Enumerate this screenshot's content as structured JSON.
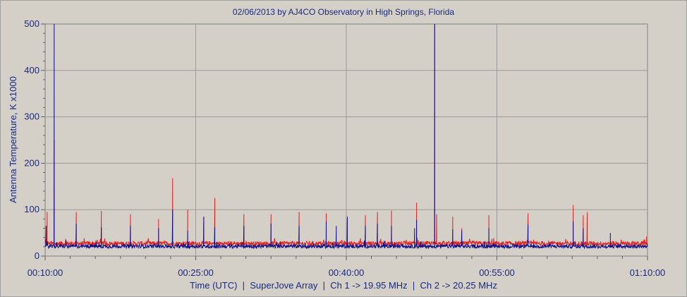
{
  "chart_data": {
    "type": "line",
    "title": "02/06/2013  by  AJ4CO Observatory  in  High Springs, Florida",
    "xlabel": "Time (UTC)  |  SuperJove Array  |  Ch 1 -> 19.95 MHz  |  Ch 2 -> 20.25 MHz",
    "ylabel": "Antenna Temperature, K x1000",
    "ylim": [
      0,
      500
    ],
    "yticks": [
      "0",
      "100",
      "200",
      "300",
      "400",
      "500"
    ],
    "xlim_minutes": [
      10,
      70
    ],
    "xticks": [
      "00:10:00",
      "00:25:00",
      "00:40:00",
      "00:55:00",
      "01:10:00"
    ],
    "grid": true,
    "series": [
      {
        "color": "#dd2222",
        "baseline": 27,
        "peaks": [
          [
            10.2,
            95
          ],
          [
            10.9,
            250
          ],
          [
            13.1,
            95
          ],
          [
            15.6,
            97
          ],
          [
            18.5,
            90
          ],
          [
            21.3,
            80
          ],
          [
            22.7,
            168
          ],
          [
            24.2,
            100
          ],
          [
            25.8,
            85
          ],
          [
            26.9,
            125
          ],
          [
            29.8,
            90
          ],
          [
            32.5,
            90
          ],
          [
            35.3,
            95
          ],
          [
            38.0,
            92
          ],
          [
            40.1,
            80
          ],
          [
            41.9,
            88
          ],
          [
            43.1,
            95
          ],
          [
            44.5,
            98
          ],
          [
            47.0,
            115
          ],
          [
            48.8,
            500
          ],
          [
            49.0,
            90
          ],
          [
            50.6,
            85
          ],
          [
            51.5,
            60
          ],
          [
            54.2,
            88
          ],
          [
            58.1,
            92
          ],
          [
            62.6,
            110
          ],
          [
            63.6,
            88
          ],
          [
            64.0,
            95
          ],
          [
            69.9,
            42
          ]
        ]
      },
      {
        "color": "#10108a",
        "baseline": 21,
        "peaks": [
          [
            10.1,
            65
          ],
          [
            10.9,
            500
          ],
          [
            13.1,
            70
          ],
          [
            15.6,
            62
          ],
          [
            18.5,
            65
          ],
          [
            21.3,
            60
          ],
          [
            22.7,
            100
          ],
          [
            24.2,
            55
          ],
          [
            25.8,
            85
          ],
          [
            26.9,
            62
          ],
          [
            29.8,
            65
          ],
          [
            32.5,
            70
          ],
          [
            35.3,
            65
          ],
          [
            38.0,
            75
          ],
          [
            39.0,
            65
          ],
          [
            40.1,
            85
          ],
          [
            41.9,
            65
          ],
          [
            43.1,
            70
          ],
          [
            44.5,
            65
          ],
          [
            46.8,
            60
          ],
          [
            47.0,
            78
          ],
          [
            48.8,
            500
          ],
          [
            50.6,
            58
          ],
          [
            51.5,
            55
          ],
          [
            54.2,
            60
          ],
          [
            58.1,
            68
          ],
          [
            62.6,
            75
          ],
          [
            63.6,
            60
          ],
          [
            66.3,
            50
          ]
        ]
      }
    ]
  }
}
